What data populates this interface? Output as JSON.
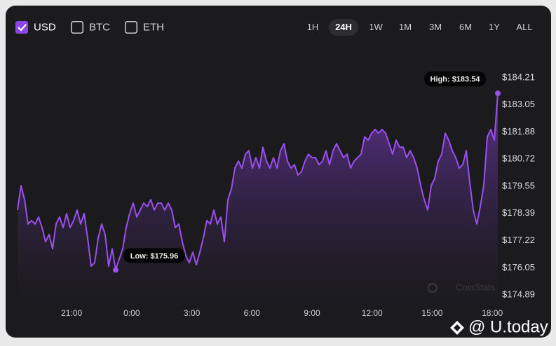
{
  "controls": {
    "currencies": [
      {
        "label": "USD",
        "checked": true
      },
      {
        "label": "BTC",
        "checked": false
      },
      {
        "label": "ETH",
        "checked": false
      }
    ],
    "ranges": [
      {
        "label": "1H",
        "selected": false
      },
      {
        "label": "24H",
        "selected": true
      },
      {
        "label": "1W",
        "selected": false
      },
      {
        "label": "1M",
        "selected": false
      },
      {
        "label": "3M",
        "selected": false
      },
      {
        "label": "6M",
        "selected": false
      },
      {
        "label": "1Y",
        "selected": false
      },
      {
        "label": "ALL",
        "selected": false
      }
    ]
  },
  "chart_data": {
    "type": "area",
    "high_label": "High: $183.54",
    "low_label": "Low: $175.96",
    "watermark": "CoinStats",
    "credit": "@ U.today",
    "color": "#9b4fee",
    "x": [
      -5.7,
      -5.525,
      -5.35,
      -5.175,
      -5,
      -4.825,
      -4.65,
      -4.475,
      -4.3,
      -4.125,
      -3.95,
      -3.775,
      -3.6,
      -3.425,
      -3.25,
      -3.075,
      -2.9,
      -2.725,
      -2.55,
      -2.375,
      -2.2,
      -2.025,
      -1.85,
      -1.675,
      -1.5,
      -1.325,
      -1.15,
      -0.975,
      -0.8,
      -0.625,
      -0.45,
      -0.275,
      -0.1,
      0.075,
      0.25,
      0.425,
      0.6,
      0.775,
      0.95,
      1.125,
      1.3,
      1.475,
      1.65,
      1.825,
      2,
      2.175,
      2.35,
      2.525,
      2.7,
      2.875,
      3.05,
      3.225,
      3.4,
      3.575,
      3.75,
      3.925,
      4.1,
      4.275,
      4.45,
      4.625,
      4.8,
      4.975,
      5.15,
      5.325,
      5.5,
      5.675,
      5.85,
      6.025,
      6.2,
      6.375,
      6.55,
      6.725,
      6.9,
      7.075,
      7.25,
      7.425,
      7.6,
      7.775,
      7.95,
      8.125,
      8.3,
      8.475,
      8.65,
      8.825,
      9,
      9.175,
      9.35,
      9.525,
      9.7,
      9.875,
      10.05,
      10.225,
      10.4,
      10.575,
      10.75,
      10.925,
      11.1,
      11.275,
      11.45,
      11.625,
      11.8,
      11.975,
      12.15,
      12.325,
      12.5,
      12.675,
      12.85,
      13.025,
      13.2,
      13.375,
      13.55,
      13.725,
      13.9,
      14.075,
      14.25,
      14.425,
      14.6,
      14.775,
      14.95,
      15.125,
      15.3,
      15.475,
      15.65,
      15.825,
      16,
      16.175,
      16.35,
      16.525,
      16.7,
      16.875,
      17.05,
      17.225,
      17.4,
      17.575,
      17.75,
      17.925,
      18.1,
      18.275
    ],
    "values": [
      178.53,
      179.58,
      178.98,
      177.93,
      178.08,
      177.93,
      178.23,
      177.78,
      177.17,
      177.48,
      176.87,
      177.93,
      178.23,
      177.78,
      178.38,
      177.78,
      178.08,
      178.53,
      177.93,
      178.38,
      177.32,
      176.12,
      176.27,
      177.32,
      177.93,
      177.48,
      176.12,
      176.87,
      175.96,
      176.42,
      176.87,
      177.78,
      178.38,
      178.83,
      178.23,
      178.53,
      178.83,
      178.68,
      178.98,
      178.53,
      178.83,
      178.83,
      178.53,
      178.83,
      178.53,
      177.78,
      177.93,
      177.17,
      176.57,
      176.27,
      176.72,
      176.18,
      176.72,
      177.32,
      178.08,
      177.93,
      178.53,
      177.93,
      178.23,
      177.17,
      178.98,
      179.43,
      180.33,
      180.63,
      180.33,
      180.93,
      181.08,
      180.33,
      180.78,
      180.33,
      181.23,
      180.63,
      180.33,
      180.78,
      180.33,
      181.08,
      181.38,
      180.63,
      180.33,
      180.48,
      180.03,
      180.18,
      180.63,
      180.93,
      180.78,
      180.78,
      180.48,
      180.63,
      181.08,
      180.48,
      181.08,
      181.38,
      181.08,
      180.78,
      180.93,
      180.33,
      180.63,
      180.78,
      180.93,
      181.68,
      181.53,
      181.83,
      181.99,
      181.83,
      181.99,
      181.83,
      181.38,
      180.93,
      181.53,
      181.23,
      181.23,
      180.78,
      181.08,
      180.78,
      180.33,
      179.58,
      178.98,
      178.53,
      179.58,
      179.88,
      180.63,
      180.93,
      181.83,
      181.53,
      181.08,
      180.78,
      180.33,
      180.48,
      181.08,
      179.73,
      178.53,
      177.93,
      178.68,
      179.58,
      181.68,
      181.99,
      181.53,
      183.54
    ],
    "xlim": [
      -5.7,
      18.275
    ],
    "xticks": [
      {
        "value": -3,
        "label": "21:00"
      },
      {
        "value": 0,
        "label": "0:00"
      },
      {
        "value": 3,
        "label": "3:00"
      },
      {
        "value": 6,
        "label": "6:00"
      },
      {
        "value": 9,
        "label": "9:00"
      },
      {
        "value": 12,
        "label": "12:00"
      },
      {
        "value": 15,
        "label": "15:00"
      },
      {
        "value": 18,
        "label": "18:00"
      }
    ],
    "ylim": [
      174.89,
      184.21
    ],
    "yticks": [
      {
        "value": 184.21,
        "label": "$184.21"
      },
      {
        "value": 183.05,
        "label": "$183.05"
      },
      {
        "value": 181.88,
        "label": "$181.88"
      },
      {
        "value": 180.72,
        "label": "$180.72"
      },
      {
        "value": 179.55,
        "label": "$179.55"
      },
      {
        "value": 178.39,
        "label": "$178.39"
      },
      {
        "value": 177.22,
        "label": "$177.22"
      },
      {
        "value": 176.05,
        "label": "$176.05"
      },
      {
        "value": 174.89,
        "label": "$174.89"
      }
    ],
    "grid": false
  }
}
